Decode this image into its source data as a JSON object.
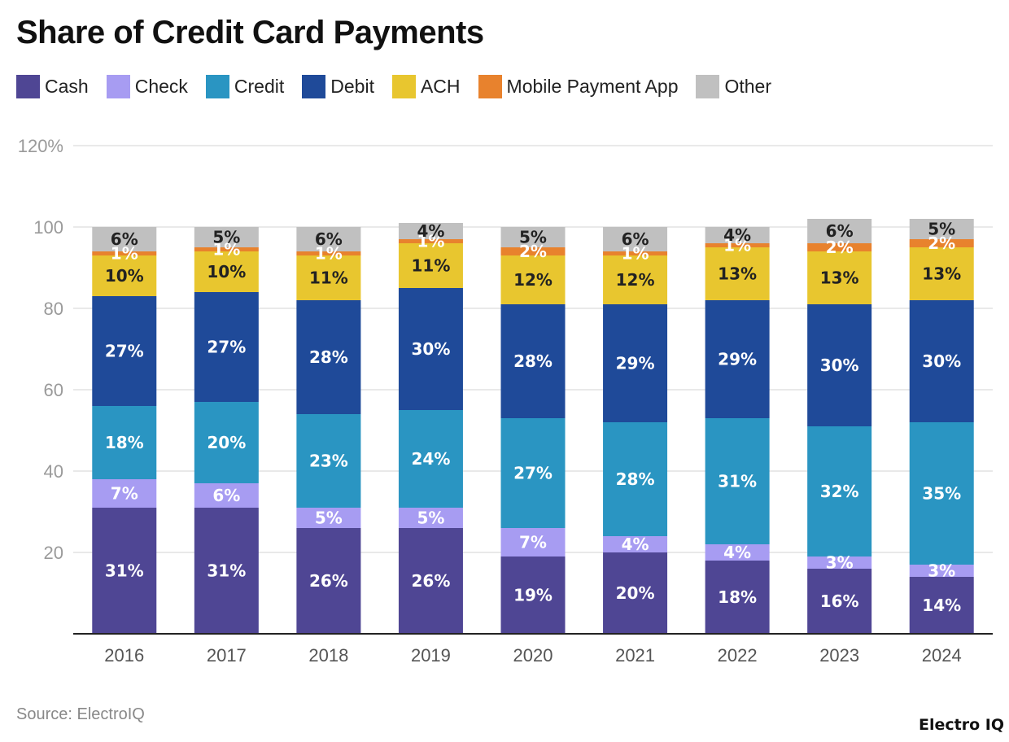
{
  "title": "Share of Credit Card Payments",
  "source": "Source: ElectroIQ",
  "brand": "Electro IQ",
  "chart_data": {
    "type": "bar",
    "stacked": true,
    "title": "Share of Credit Card Payments",
    "xlabel": "",
    "ylabel": "",
    "categories": [
      "2016",
      "2017",
      "2018",
      "2019",
      "2020",
      "2021",
      "2022",
      "2023",
      "2024"
    ],
    "ylim": [
      0,
      120
    ],
    "yticks": [
      {
        "value": 20,
        "label": "20"
      },
      {
        "value": 40,
        "label": "40"
      },
      {
        "value": 60,
        "label": "60"
      },
      {
        "value": 80,
        "label": "80"
      },
      {
        "value": 100,
        "label": "100"
      },
      {
        "value": 120,
        "label": "120%"
      }
    ],
    "grid": true,
    "legend_position": "top-left",
    "series": [
      {
        "name": "Cash",
        "color": "#4f4694",
        "label_color": "#ffffff",
        "values": [
          31,
          31,
          26,
          26,
          19,
          20,
          18,
          16,
          14
        ]
      },
      {
        "name": "Check",
        "color": "#a79cf2",
        "label_color": "#ffffff",
        "values": [
          7,
          6,
          5,
          5,
          7,
          4,
          4,
          3,
          3
        ]
      },
      {
        "name": "Credit",
        "color": "#2a95c2",
        "label_color": "#ffffff",
        "values": [
          18,
          20,
          23,
          24,
          27,
          28,
          31,
          32,
          35
        ]
      },
      {
        "name": "Debit",
        "color": "#1f4a99",
        "label_color": "#ffffff",
        "values": [
          27,
          27,
          28,
          30,
          28,
          29,
          29,
          30,
          30
        ]
      },
      {
        "name": "ACH",
        "color": "#e8c62f",
        "label_color": "#222222",
        "values": [
          10,
          10,
          11,
          11,
          12,
          12,
          13,
          13,
          13
        ]
      },
      {
        "name": "Mobile Payment App",
        "color": "#e8822d",
        "label_color": "#ffffff",
        "values": [
          1,
          1,
          1,
          1,
          2,
          1,
          1,
          2,
          2
        ]
      },
      {
        "name": "Other",
        "color": "#c0c0c0",
        "label_color": "#222222",
        "values": [
          6,
          5,
          6,
          4,
          5,
          6,
          4,
          6,
          5
        ]
      }
    ]
  }
}
